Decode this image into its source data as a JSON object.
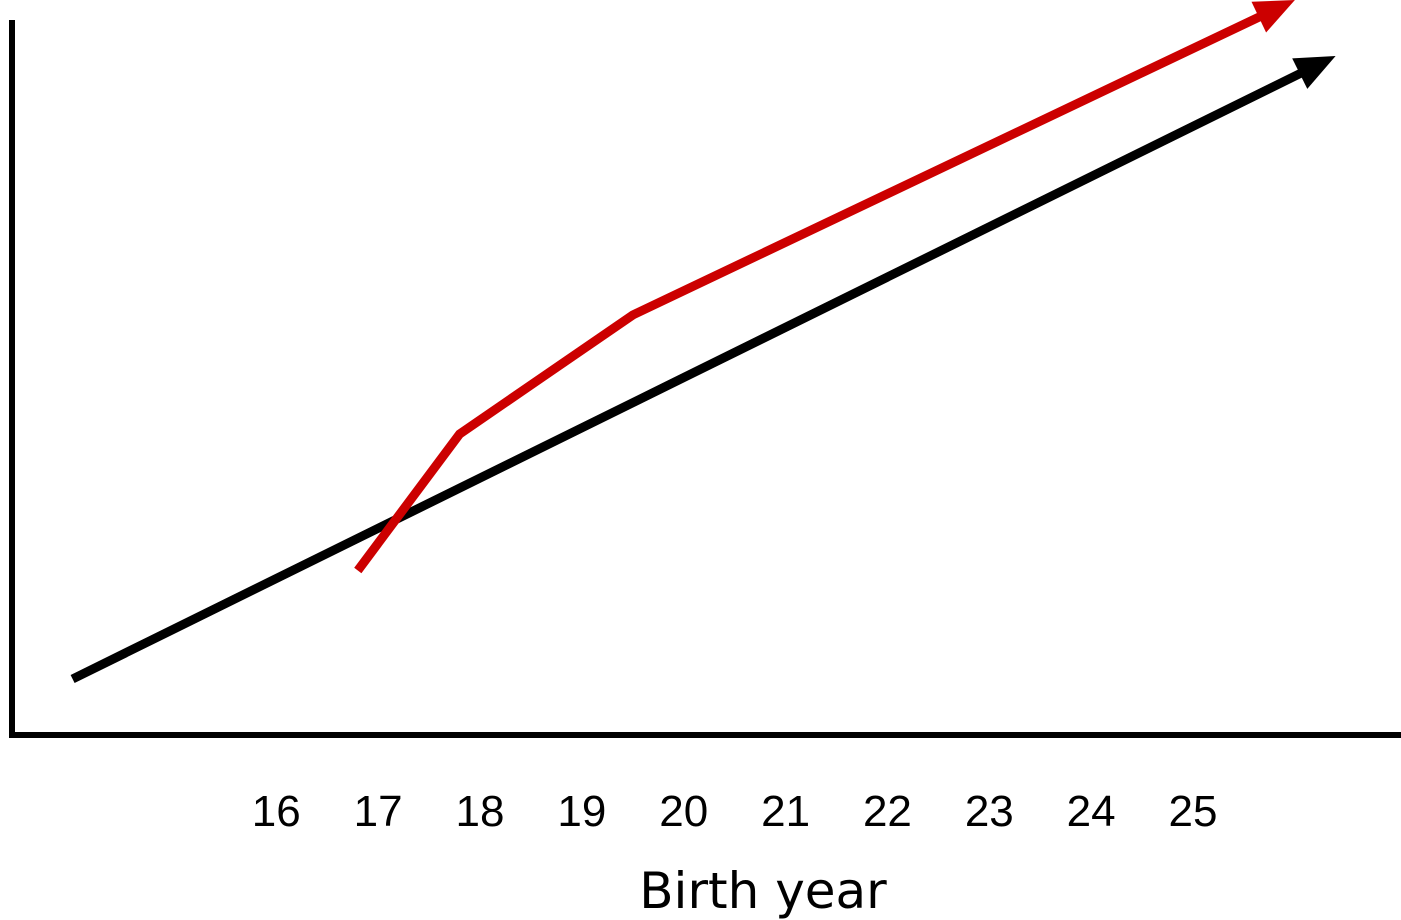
{
  "chart_data": {
    "type": "line",
    "title": "",
    "xlabel": "Birth year",
    "ylabel": "",
    "categories": [
      "16",
      "17",
      "18",
      "19",
      "20",
      "21",
      "22",
      "23",
      "24",
      "25"
    ],
    "xlim": [
      13.7,
      26.6
    ],
    "ylim": [
      0,
      1
    ],
    "grid": false,
    "legend": "none",
    "series": [
      {
        "color": "#000000",
        "x": [
          14.0,
          26.4
        ],
        "y": [
          0.08,
          0.97
        ],
        "arrow_end": true
      },
      {
        "color": "#cc0000",
        "x": [
          16.8,
          17.8,
          19.5,
          26.0
        ],
        "y": [
          0.235,
          0.43,
          0.6,
          1.05
        ],
        "arrow_end": true
      }
    ]
  }
}
